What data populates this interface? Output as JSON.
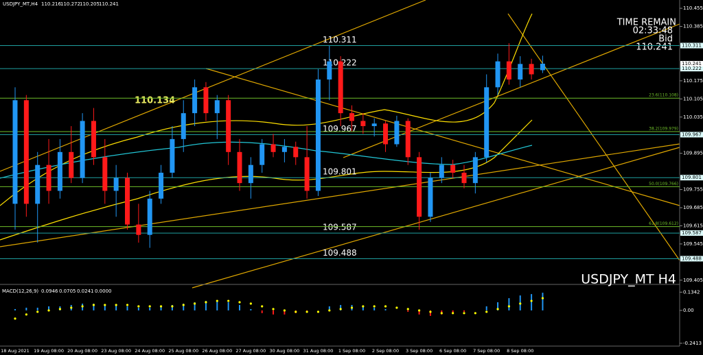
{
  "chart_data": [
    {
      "type": "candlestick",
      "title": "USDJPY_MT,H4",
      "watermark": "USDJPY_MT H4",
      "categories": [
        "18 Aug 2021",
        null,
        null,
        "19 Aug 08:00",
        null,
        null,
        "20 Aug 08:00",
        null,
        null,
        "23 Aug 08:00",
        null,
        null,
        "24 Aug 08:00",
        null,
        null,
        "25 Aug 08:00",
        null,
        null,
        "26 Aug 08:00",
        null,
        null,
        "27 Aug 08:00",
        null,
        null,
        "30 Aug 08:00",
        null,
        null,
        "31 Aug 08:00",
        null,
        null,
        "1 Sep 08:00",
        null,
        null,
        "2 Sep 08:00",
        null,
        null,
        "3 Sep 08:00",
        null,
        null,
        "6 Sep 08:00",
        null,
        null,
        "7 Sep 08:00",
        null,
        null,
        "8 Sep 08:00",
        null,
        null
      ],
      "open": [
        109.7,
        110.1,
        109.7,
        109.85,
        109.75,
        109.9,
        109.8,
        110.02,
        109.88,
        109.75,
        109.8,
        109.62,
        109.58,
        109.72,
        109.82,
        109.95,
        110.05,
        110.15,
        110.05,
        110.1,
        109.9,
        109.78,
        109.85,
        109.93,
        109.9,
        109.92,
        109.88,
        109.75,
        110.18,
        110.25,
        110.05,
        110.02,
        110.0,
        110.01,
        109.93,
        110.02,
        109.88,
        109.65,
        109.8,
        109.85,
        109.82,
        109.78,
        109.88,
        110.15,
        110.25,
        110.18,
        110.24,
        110.216
      ],
      "high": [
        110.15,
        110.12,
        109.9,
        109.95,
        109.95,
        110.0,
        110.05,
        110.07,
        109.95,
        109.85,
        109.82,
        109.7,
        109.75,
        109.85,
        110.0,
        110.1,
        110.18,
        110.17,
        110.12,
        110.12,
        109.95,
        109.88,
        109.95,
        109.97,
        109.95,
        109.94,
        110.0,
        110.22,
        110.31,
        110.27,
        110.08,
        110.05,
        110.03,
        110.02,
        110.04,
        110.03,
        109.9,
        109.82,
        109.88,
        109.87,
        109.85,
        109.9,
        110.2,
        110.28,
        110.32,
        110.27,
        110.26,
        110.272
      ],
      "low": [
        109.6,
        109.65,
        109.55,
        109.7,
        109.72,
        109.78,
        109.78,
        109.85,
        109.7,
        109.65,
        109.6,
        109.55,
        109.53,
        109.7,
        109.8,
        109.9,
        110.0,
        110.02,
        109.95,
        109.85,
        109.75,
        109.72,
        109.82,
        109.88,
        109.86,
        109.85,
        109.72,
        109.73,
        110.1,
        110.0,
        109.98,
        109.97,
        109.96,
        109.9,
        109.92,
        109.85,
        109.6,
        109.63,
        109.78,
        109.8,
        109.76,
        109.74,
        109.86,
        110.12,
        110.16,
        110.15,
        110.18,
        110.205
      ],
      "close": [
        110.1,
        109.7,
        109.85,
        109.75,
        109.9,
        109.8,
        110.02,
        109.88,
        109.75,
        109.8,
        109.62,
        109.58,
        109.72,
        109.82,
        109.95,
        110.05,
        110.15,
        110.05,
        110.1,
        109.9,
        109.78,
        109.85,
        109.93,
        109.9,
        109.92,
        109.88,
        109.75,
        110.18,
        110.25,
        110.05,
        110.02,
        110.0,
        110.01,
        109.93,
        110.02,
        109.88,
        109.65,
        109.8,
        109.85,
        109.82,
        109.78,
        109.88,
        110.15,
        110.25,
        110.18,
        110.24,
        110.2,
        110.241
      ],
      "up_color": "#2196f3",
      "down_color": "#ff1a1a",
      "ylim": [
        109.394,
        110.487
      ],
      "yticks": [
        110.455,
        110.385,
        110.175,
        110.105,
        110.035,
        109.895,
        109.755,
        109.685,
        109.615,
        109.545,
        109.405
      ],
      "levels": [
        110.311,
        110.222,
        109.967,
        109.801,
        109.587,
        109.488
      ],
      "level_color": "#1fa0a0",
      "fib_levels": [
        {
          "value": 110.108,
          "label": "23.6(110.108)"
        },
        {
          "value": 109.979,
          "label": "38.2(109.979)"
        },
        {
          "value": 109.766,
          "label": "50.0(109.766)"
        },
        {
          "value": 109.612,
          "label": "61.8(109.612)"
        }
      ],
      "fib_color": "#6fbf2a",
      "annotation": 110.134,
      "time_remain_label": "TIME REMAIN",
      "time_remain": "02:33:48",
      "bid_label": "Bid",
      "bid": 110.241
    },
    {
      "type": "macd",
      "title": "MACD(12,26,9)",
      "readout": [
        0.0946,
        0.0705,
        0.0241,
        {
          "value": 0,
          "label": "0.0000"
        }
      ],
      "histogram": [
        0.01,
        0.02,
        0.02,
        0.03,
        0.03,
        0.04,
        0.05,
        0.05,
        0.04,
        0.04,
        0.03,
        0.02,
        0.02,
        0.03,
        0.04,
        0.05,
        0.06,
        0.07,
        0.07,
        0.06,
        0.04,
        0.01,
        -0.02,
        -0.03,
        -0.03,
        -0.02,
        -0.01,
        0.0,
        0.03,
        0.04,
        0.04,
        0.03,
        0.02,
        0.01,
        0.0,
        -0.01,
        -0.03,
        -0.04,
        -0.03,
        -0.02,
        -0.01,
        0.0,
        0.03,
        0.06,
        0.09,
        0.11,
        0.12,
        0.13
      ],
      "signal": [
        -0.06,
        -0.03,
        -0.01,
        0.0,
        0.01,
        0.02,
        0.03,
        0.04,
        0.04,
        0.04,
        0.04,
        0.03,
        0.03,
        0.03,
        0.03,
        0.04,
        0.05,
        0.06,
        0.07,
        0.07,
        0.06,
        0.05,
        0.03,
        0.01,
        0.0,
        -0.01,
        -0.01,
        -0.01,
        0.0,
        0.01,
        0.02,
        0.03,
        0.03,
        0.03,
        0.02,
        0.01,
        0.0,
        -0.01,
        -0.02,
        -0.02,
        -0.02,
        -0.02,
        -0.01,
        0.01,
        0.03,
        0.05,
        0.07,
        0.09
      ],
      "pos_color": "#2196f3",
      "neg_color": "#ff1a1a",
      "signal_color": "#ffff00",
      "ylim": [
        0.186,
        -0.262
      ],
      "yticks": [
        0.1342,
        {
          "value": 0,
          "label": "0.00"
        },
        -0.2413
      ]
    }
  ]
}
